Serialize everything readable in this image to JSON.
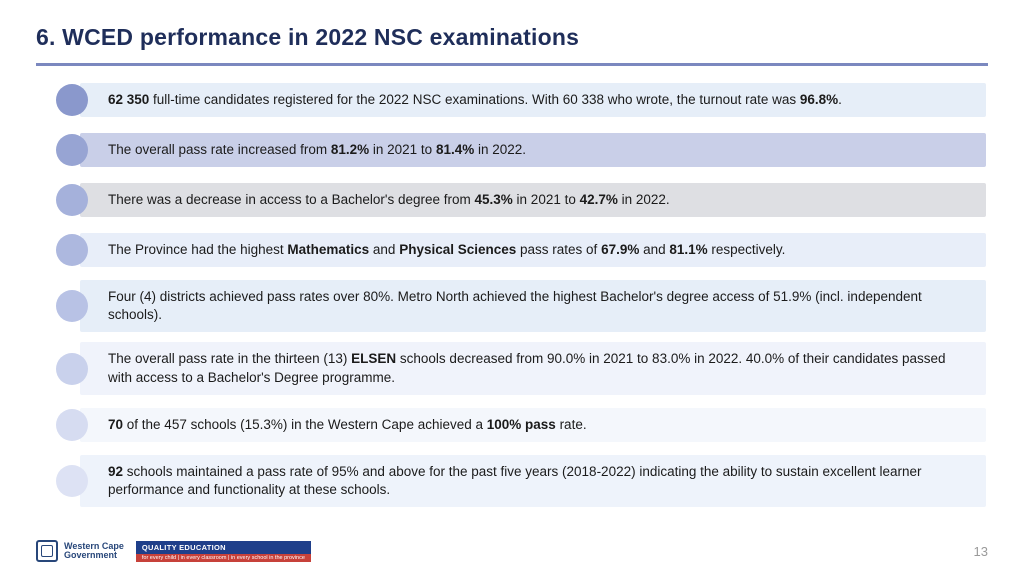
{
  "title": "6. WCED performance in 2022 NSC examinations",
  "accent_rule_color": "#7b88bf",
  "rows": [
    {
      "dot_color": "#8a98cc",
      "bar_color": "#e6eef8",
      "html": "<b>62 350</b> full-time candidates registered for the 2022 NSC examinations.  With 60 338 who wrote, the turnout rate was <b>96.8%</b>."
    },
    {
      "dot_color": "#97a4d3",
      "bar_color": "#c9cfe8",
      "html": "The overall pass rate increased from <b>81.2%</b> in 2021 to <b>81.4%</b> in 2022."
    },
    {
      "dot_color": "#a5b1db",
      "bar_color": "#dedfe3",
      "html": "There was a decrease in access to a Bachelor's degree from <b>45.3%</b> in 2021 to <b>42.7%</b> in 2022."
    },
    {
      "dot_color": "#adb8df",
      "bar_color": "#e8eef9",
      "html": "The Province had the highest <b>Mathematics</b> and <b>Physical Sciences</b> pass rates of <b>67.9%</b> and <b>81.1%</b> respectively."
    },
    {
      "dot_color": "#b8c2e5",
      "bar_color": "#e6eef8",
      "html": "Four (4) districts achieved pass rates over 80%. Metro North achieved the highest Bachelor's degree access of 51.9% (incl. independent schools)."
    },
    {
      "dot_color": "#c9d1ec",
      "bar_color": "#f0f3fb",
      "html": "The overall pass rate in the thirteen (13) <b>ELSEN</b> schools decreased from 90.0% in 2021 to 83.0% in 2022. 40.0% of their candidates passed with access to a Bachelor's Degree programme."
    },
    {
      "dot_color": "#d6dcf1",
      "bar_color": "#f4f7fc",
      "html": "<b>70</b> of the 457 schools (15.3%) in the Western Cape achieved a <b>100% pass</b> rate."
    },
    {
      "dot_color": "#dde2f4",
      "bar_color": "#eef3fb",
      "html": "<b>92</b> schools maintained a pass rate of 95% and above for the past five years (2018-2022) indicating the ability to sustain excellent learner performance and functionality at these schools."
    }
  ],
  "footer": {
    "wc_line1": "Western Cape",
    "wc_line2": "Government",
    "qe_top": "QUALITY EDUCATION",
    "qe_bot": "for every child | in every classroom | in every school in the province",
    "page_number": "13"
  }
}
